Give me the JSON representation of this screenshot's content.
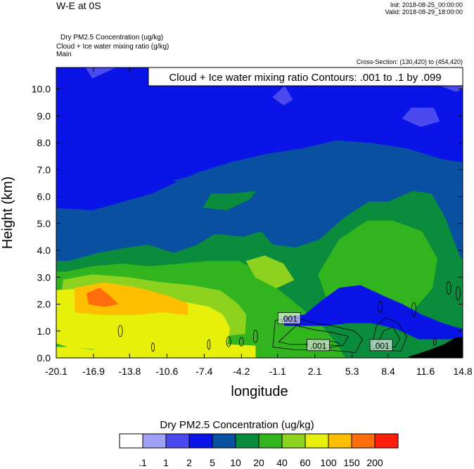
{
  "header": {
    "title": "W-E at 0S",
    "init": "Init: 2018-08-25_00:00:00",
    "valid": "Valid: 2018-08-29_18:00:00",
    "var1": "Dry PM2.5 Concentration   (ug/kg)",
    "var2": "Cloud + Ice water mixing ratio   (g/kg)",
    "var3": "Main",
    "cross_section": "Cross-Section: (130,420) to (454,420)"
  },
  "chart_data": {
    "type": "heatmap",
    "title": "",
    "contour_label": "Cloud + Ice water mixing ratio Contours: .001 to .1 by .099",
    "xlabel": "longitude",
    "ylabel": "Height (km)",
    "xlim": [
      -20.1,
      14.8
    ],
    "ylim": [
      0,
      10.8
    ],
    "xticks": [
      "-20.1",
      "-16.9",
      "-13.8",
      "-10.6",
      "-7.4",
      "-4.2",
      "-1.1",
      "2.1",
      "5.3",
      "8.4",
      "11.6",
      "14.8"
    ],
    "yticks": [
      "0.0",
      "1.0",
      "2.0",
      "3.0",
      "4.0",
      "5.0",
      "6.0",
      "7.0",
      "8.0",
      "9.0",
      "10.0"
    ],
    "contour_labels": [
      ".001",
      ".001",
      ".001"
    ],
    "colorbar": {
      "title": "Dry PM2.5 Concentration  (ug/kg)",
      "labels": [
        ".1",
        "1",
        "2",
        "5",
        "10",
        "20",
        "40",
        "60",
        "100",
        "150",
        "200"
      ],
      "colors": [
        "#ffffff",
        "#a0a0f5",
        "#4a4af0",
        "#0a14e6",
        "#0a50a0",
        "#0a8c3c",
        "#32b41e",
        "#8cd21e",
        "#e6f00a",
        "#ffbe00",
        "#ff6e0a",
        "#ff1e0a"
      ]
    }
  }
}
